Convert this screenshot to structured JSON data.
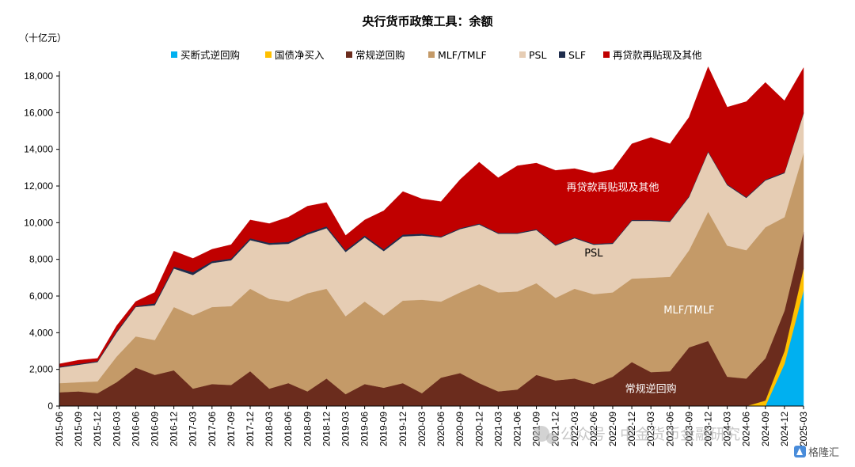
{
  "chart_data": {
    "type": "area",
    "stacked": true,
    "title": "央行货币政策工具：余额",
    "unit_label": "（十亿元）",
    "ylim": [
      0,
      18000
    ],
    "yticks": [
      0,
      2000,
      4000,
      6000,
      8000,
      10000,
      12000,
      14000,
      16000,
      18000
    ],
    "ytick_labels": [
      "0",
      "2,000",
      "4,000",
      "6,000",
      "8,000",
      "10,000",
      "12,000",
      "14,000",
      "16,000",
      "18,000"
    ],
    "grid": false,
    "legend_position": "top",
    "categories": [
      "2015-06",
      "2015-09",
      "2015-12",
      "2016-03",
      "2016-06",
      "2016-09",
      "2016-12",
      "2017-03",
      "2017-06",
      "2017-09",
      "2017-12",
      "2018-03",
      "2018-06",
      "2018-09",
      "2018-12",
      "2019-03",
      "2019-06",
      "2019-09",
      "2019-12",
      "2020-03",
      "2020-06",
      "2020-09",
      "2020-12",
      "2021-03",
      "2021-06",
      "2021-09",
      "2021-12",
      "2022-03",
      "2022-06",
      "2022-09",
      "2022-12",
      "2023-03",
      "2023-06",
      "2023-09",
      "2023-12",
      "2024-03",
      "2024-06",
      "2024-09",
      "2024-12",
      "2025-03"
    ],
    "series": [
      {
        "name": "买断式逆回购",
        "color": "#00b0f0",
        "values": [
          0,
          0,
          0,
          0,
          0,
          0,
          0,
          0,
          0,
          0,
          0,
          0,
          0,
          0,
          0,
          0,
          0,
          0,
          0,
          0,
          0,
          0,
          0,
          0,
          0,
          0,
          0,
          0,
          0,
          0,
          0,
          0,
          0,
          0,
          0,
          0,
          0,
          0,
          2300,
          6300
        ]
      },
      {
        "name": "国债净买入",
        "color": "#ffc000",
        "values": [
          0,
          0,
          0,
          0,
          0,
          0,
          0,
          0,
          0,
          0,
          0,
          0,
          0,
          0,
          0,
          0,
          0,
          0,
          0,
          0,
          0,
          0,
          0,
          0,
          0,
          0,
          0,
          0,
          0,
          0,
          0,
          0,
          0,
          0,
          0,
          0,
          0,
          300,
          700,
          1200
        ]
      },
      {
        "name": "常规逆回购",
        "color": "#6b2c1d",
        "values": [
          750,
          800,
          700,
          1300,
          2100,
          1700,
          1950,
          950,
          1200,
          1150,
          1900,
          950,
          1250,
          800,
          1500,
          650,
          1200,
          1000,
          1250,
          700,
          1550,
          1800,
          1250,
          800,
          900,
          1700,
          1400,
          1500,
          1200,
          1600,
          2400,
          1850,
          1900,
          3200,
          3550,
          1600,
          1500,
          2300,
          2200,
          2000
        ]
      },
      {
        "name": "MLF/TMLF",
        "color": "#c49a68",
        "values": [
          500,
          500,
          650,
          1400,
          1700,
          1900,
          3450,
          4000,
          4200,
          4300,
          4500,
          4900,
          4450,
          5350,
          4900,
          4250,
          4500,
          3950,
          4500,
          5100,
          4150,
          4400,
          5400,
          5400,
          5350,
          5000,
          4500,
          4900,
          4900,
          4600,
          4550,
          5150,
          5150,
          5300,
          7050,
          7150,
          7000,
          7150,
          5100,
          4300
        ]
      },
      {
        "name": "PSL",
        "color": "#e6cdb4",
        "values": [
          850,
          950,
          1050,
          1300,
          1600,
          1900,
          2100,
          2200,
          2400,
          2500,
          2650,
          2950,
          3150,
          3200,
          3300,
          3500,
          3500,
          3500,
          3500,
          3500,
          3500,
          3450,
          3250,
          3200,
          3150,
          2900,
          2850,
          2750,
          2700,
          2650,
          3150,
          3100,
          3000,
          2900,
          3250,
          3300,
          2850,
          2550,
          2400,
          2150
        ]
      },
      {
        "name": "SLF",
        "color": "#1f2d4d",
        "values": [
          50,
          50,
          50,
          80,
          50,
          100,
          100,
          150,
          100,
          100,
          100,
          100,
          100,
          100,
          100,
          100,
          100,
          100,
          100,
          100,
          50,
          50,
          50,
          50,
          50,
          50,
          50,
          50,
          50,
          50,
          50,
          50,
          50,
          50,
          50,
          50,
          50,
          50,
          50,
          50
        ]
      },
      {
        "name": "再贷款再贴现及其他",
        "color": "#c00000",
        "values": [
          150,
          200,
          150,
          300,
          250,
          600,
          850,
          750,
          650,
          750,
          1000,
          1050,
          1350,
          1450,
          1300,
          800,
          850,
          2100,
          2350,
          1900,
          1900,
          2650,
          3350,
          3000,
          3650,
          3600,
          4050,
          3750,
          3850,
          4000,
          4150,
          4500,
          4200,
          4300,
          4600,
          4200,
          5200,
          5300,
          3900,
          2450
        ]
      }
    ],
    "annotations": [
      {
        "text": "再贷款再贴现及其他",
        "color": "#ffffff",
        "at_category": "2022-09",
        "at_value": 11750
      },
      {
        "text": "PSL",
        "color": "#000000",
        "at_category": "2022-06",
        "at_value": 8150
      },
      {
        "text": "MLF/TMLF",
        "color": "#ffffff",
        "at_category": "2023-09",
        "at_value": 5050
      },
      {
        "text": "常规逆回购",
        "color": "#ffffff",
        "at_category": "2023-03",
        "at_value": 750
      }
    ],
    "watermark": "公众号 · 中金货币金融研究",
    "source_logo_text": "格隆汇"
  }
}
